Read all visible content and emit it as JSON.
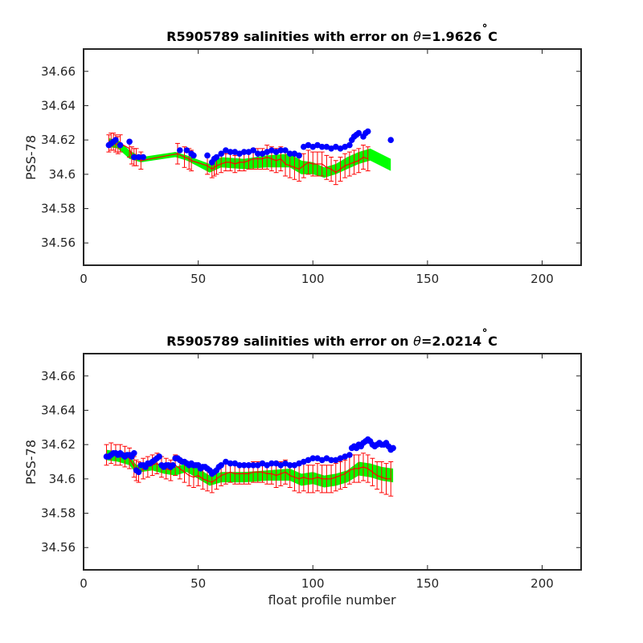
{
  "chart_data": [
    {
      "type": "scatter",
      "title": "R5905789 salinities with error on θ=1.9626˚C",
      "title_prefix": "R5905789 salinities with error on ",
      "title_theta": "θ",
      "title_suffix": "=1.9626",
      "title_deg": "˚",
      "title_unit": "C",
      "xlabel": "",
      "ylabel": "PSS-78",
      "xlim": [
        0,
        217
      ],
      "ylim": [
        34.547,
        34.673
      ],
      "xticks": [
        0,
        50,
        100,
        150,
        200
      ],
      "yticks": [
        34.56,
        34.58,
        34.6,
        34.62,
        34.64,
        34.66
      ],
      "ytick_labels": [
        "34.56",
        "34.58",
        "34.6",
        "34.62",
        "34.64",
        "34.66"
      ],
      "grid": false,
      "colors": {
        "calibrated": "#0000ff",
        "uncalibrated": "#ff0000",
        "climatology_band": "#00ff00"
      },
      "band": {
        "x": [
          11,
          15,
          20,
          25,
          40,
          45,
          55,
          60,
          70,
          80,
          90,
          95,
          100,
          105,
          110,
          115,
          120,
          125,
          134
        ],
        "upper": [
          34.621,
          34.62,
          34.614,
          34.61,
          34.613,
          34.611,
          34.606,
          34.61,
          34.609,
          34.611,
          34.612,
          34.608,
          34.607,
          34.604,
          34.606,
          34.61,
          34.613,
          34.615,
          34.609
        ],
        "lower": [
          34.616,
          34.615,
          34.609,
          34.607,
          34.61,
          34.608,
          34.601,
          34.604,
          34.603,
          34.604,
          34.604,
          34.6,
          34.6,
          34.598,
          34.6,
          34.603,
          34.606,
          34.608,
          34.602
        ]
      },
      "uncal": {
        "x": [
          11,
          12,
          13,
          14,
          15,
          16,
          20,
          21,
          22,
          23,
          25,
          41,
          44,
          46,
          47,
          54,
          56,
          57,
          58,
          60,
          62,
          64,
          66,
          68,
          70,
          72,
          74,
          76,
          78,
          80,
          82,
          84,
          86,
          88,
          90,
          92,
          94,
          96,
          98,
          100,
          102,
          104,
          106,
          108,
          110,
          112,
          114,
          116,
          118,
          120,
          122,
          124
        ],
        "y": [
          34.618,
          34.619,
          34.619,
          34.618,
          34.617,
          34.618,
          34.615,
          34.611,
          34.61,
          34.61,
          34.608,
          34.612,
          34.61,
          34.609,
          34.608,
          34.605,
          34.603,
          34.604,
          34.605,
          34.606,
          34.607,
          34.607,
          34.606,
          34.607,
          34.607,
          34.608,
          34.609,
          34.609,
          34.609,
          34.61,
          34.609,
          34.608,
          34.609,
          34.606,
          34.605,
          34.604,
          34.603,
          34.605,
          34.607,
          34.606,
          34.606,
          34.606,
          34.604,
          34.603,
          34.601,
          34.603,
          34.605,
          34.606,
          34.607,
          34.608,
          34.61,
          34.609
        ],
        "err": [
          0.005,
          0.005,
          0.005,
          0.005,
          0.005,
          0.005,
          0.005,
          0.005,
          0.005,
          0.005,
          0.005,
          0.006,
          0.006,
          0.006,
          0.006,
          0.005,
          0.005,
          0.005,
          0.005,
          0.005,
          0.005,
          0.005,
          0.005,
          0.005,
          0.005,
          0.005,
          0.006,
          0.006,
          0.006,
          0.007,
          0.007,
          0.007,
          0.007,
          0.007,
          0.007,
          0.007,
          0.007,
          0.007,
          0.007,
          0.007,
          0.007,
          0.007,
          0.007,
          0.007,
          0.007,
          0.007,
          0.007,
          0.007,
          0.007,
          0.007,
          0.007,
          0.007
        ]
      },
      "cal": {
        "x": [
          11,
          12,
          13,
          14,
          16,
          20,
          22,
          24,
          26,
          42,
          45,
          47,
          48,
          54,
          56,
          57,
          58,
          60,
          62,
          64,
          66,
          68,
          70,
          72,
          74,
          76,
          78,
          80,
          82,
          84,
          86,
          88,
          90,
          92,
          94,
          96,
          98,
          100,
          102,
          104,
          106,
          108,
          110,
          112,
          114,
          116,
          117,
          118,
          119,
          120,
          122,
          123,
          124,
          134
        ],
        "y": [
          34.617,
          34.618,
          34.619,
          34.62,
          34.617,
          34.619,
          34.61,
          34.61,
          34.61,
          34.614,
          34.614,
          34.612,
          34.611,
          34.611,
          34.607,
          34.609,
          34.61,
          34.612,
          34.614,
          34.613,
          34.613,
          34.612,
          34.613,
          34.613,
          34.614,
          34.612,
          34.612,
          34.613,
          34.614,
          34.613,
          34.614,
          34.614,
          34.612,
          34.612,
          34.611,
          34.616,
          34.617,
          34.616,
          34.617,
          34.616,
          34.616,
          34.615,
          34.616,
          34.615,
          34.616,
          34.617,
          34.62,
          34.622,
          34.623,
          34.624,
          34.622,
          34.624,
          34.625,
          34.62
        ]
      }
    },
    {
      "type": "scatter",
      "title": "R5905789 salinities with error on θ=2.0214˚C",
      "title_prefix": "R5905789 salinities with error on ",
      "title_theta": "θ",
      "title_suffix": "=2.0214",
      "title_deg": "˚",
      "title_unit": "C",
      "xlabel": "float profile number",
      "ylabel": "PSS-78",
      "xlim": [
        0,
        217
      ],
      "ylim": [
        34.547,
        34.673
      ],
      "xticks": [
        0,
        50,
        100,
        150,
        200
      ],
      "yticks": [
        34.56,
        34.58,
        34.6,
        34.62,
        34.64,
        34.66
      ],
      "ytick_labels": [
        "34.56",
        "34.58",
        "34.6",
        "34.62",
        "34.64",
        "34.66"
      ],
      "grid": false,
      "colors": {
        "calibrated": "#0000ff",
        "uncalibrated": "#ff0000",
        "climatology_band": "#00ff00"
      },
      "band": {
        "x": [
          10,
          15,
          20,
          23,
          25,
          30,
          35,
          40,
          45,
          50,
          55,
          60,
          70,
          80,
          90,
          95,
          100,
          105,
          110,
          115,
          120,
          125,
          130,
          135
        ],
        "upper": [
          34.617,
          34.616,
          34.614,
          34.608,
          34.609,
          34.61,
          34.608,
          34.607,
          34.609,
          34.606,
          34.602,
          34.604,
          34.604,
          34.605,
          34.606,
          34.603,
          34.604,
          34.602,
          34.603,
          34.605,
          34.61,
          34.609,
          34.607,
          34.606
        ],
        "lower": [
          34.611,
          34.61,
          34.608,
          34.603,
          34.604,
          34.605,
          34.603,
          34.602,
          34.604,
          34.6,
          34.596,
          34.598,
          34.598,
          34.599,
          34.599,
          34.596,
          34.597,
          34.595,
          34.596,
          34.598,
          34.602,
          34.601,
          34.599,
          34.598
        ]
      },
      "uncal": {
        "x": [
          10,
          12,
          14,
          16,
          18,
          20,
          22,
          23,
          24,
          26,
          28,
          30,
          32,
          34,
          36,
          38,
          40,
          42,
          44,
          46,
          48,
          50,
          52,
          54,
          56,
          58,
          60,
          62,
          64,
          66,
          68,
          70,
          72,
          74,
          76,
          78,
          80,
          82,
          84,
          86,
          88,
          90,
          92,
          94,
          96,
          98,
          100,
          102,
          104,
          106,
          108,
          110,
          112,
          114,
          116,
          118,
          120,
          122,
          124,
          126,
          128,
          130,
          132,
          134
        ],
        "y": [
          34.614,
          34.615,
          34.614,
          34.614,
          34.613,
          34.612,
          34.607,
          34.605,
          34.604,
          34.606,
          34.607,
          34.608,
          34.609,
          34.607,
          34.606,
          34.605,
          34.608,
          34.606,
          34.604,
          34.602,
          34.601,
          34.602,
          34.6,
          34.599,
          34.598,
          34.6,
          34.602,
          34.603,
          34.604,
          34.603,
          34.603,
          34.603,
          34.603,
          34.604,
          34.604,
          34.604,
          34.603,
          34.603,
          34.602,
          34.603,
          34.604,
          34.602,
          34.601,
          34.6,
          34.601,
          34.6,
          34.6,
          34.601,
          34.6,
          34.6,
          34.6,
          34.601,
          34.602,
          34.603,
          34.605,
          34.606,
          34.606,
          34.607,
          34.606,
          34.604,
          34.602,
          34.601,
          34.6,
          34.6
        ],
        "err": [
          0.006,
          0.006,
          0.006,
          0.006,
          0.006,
          0.006,
          0.006,
          0.006,
          0.006,
          0.006,
          0.006,
          0.006,
          0.006,
          0.006,
          0.006,
          0.006,
          0.006,
          0.006,
          0.006,
          0.006,
          0.006,
          0.006,
          0.006,
          0.006,
          0.006,
          0.006,
          0.006,
          0.006,
          0.006,
          0.006,
          0.006,
          0.006,
          0.006,
          0.006,
          0.006,
          0.006,
          0.006,
          0.006,
          0.007,
          0.007,
          0.007,
          0.007,
          0.008,
          0.008,
          0.008,
          0.008,
          0.008,
          0.008,
          0.008,
          0.008,
          0.008,
          0.008,
          0.008,
          0.008,
          0.008,
          0.008,
          0.008,
          0.008,
          0.008,
          0.008,
          0.008,
          0.009,
          0.009,
          0.01
        ]
      },
      "cal": {
        "x": [
          10,
          11,
          12,
          13,
          14,
          15,
          16,
          17,
          18,
          19,
          20,
          21,
          22,
          23,
          24,
          25,
          26,
          27,
          28,
          29,
          30,
          31,
          32,
          33,
          34,
          35,
          36,
          37,
          38,
          39,
          40,
          41,
          42,
          43,
          44,
          45,
          46,
          47,
          48,
          49,
          50,
          51,
          52,
          53,
          54,
          55,
          56,
          57,
          58,
          59,
          60,
          62,
          64,
          66,
          68,
          70,
          72,
          74,
          76,
          78,
          80,
          82,
          84,
          86,
          88,
          90,
          92,
          94,
          96,
          98,
          100,
          102,
          104,
          106,
          108,
          110,
          112,
          114,
          116,
          117,
          118,
          119,
          120,
          121,
          122,
          123,
          124,
          125,
          126,
          127,
          128,
          129,
          130,
          131,
          132,
          133,
          134,
          135
        ],
        "y": [
          34.613,
          34.613,
          34.614,
          34.615,
          34.615,
          34.614,
          34.615,
          34.614,
          34.613,
          34.614,
          34.614,
          34.613,
          34.615,
          34.605,
          34.604,
          34.608,
          34.608,
          34.607,
          34.609,
          34.609,
          34.61,
          34.611,
          34.612,
          34.613,
          34.608,
          34.607,
          34.608,
          34.608,
          34.607,
          34.608,
          34.612,
          34.612,
          34.611,
          34.61,
          34.61,
          34.609,
          34.608,
          34.609,
          34.608,
          34.608,
          34.608,
          34.606,
          34.607,
          34.607,
          34.606,
          34.605,
          34.603,
          34.604,
          34.605,
          34.607,
          34.608,
          34.61,
          34.609,
          34.609,
          34.608,
          34.608,
          34.608,
          34.608,
          34.608,
          34.609,
          34.608,
          34.609,
          34.609,
          34.608,
          34.609,
          34.608,
          34.608,
          34.609,
          34.61,
          34.611,
          34.612,
          34.612,
          34.611,
          34.612,
          34.611,
          34.611,
          34.612,
          34.613,
          34.614,
          34.618,
          34.619,
          34.618,
          34.62,
          34.619,
          34.621,
          34.622,
          34.623,
          34.622,
          34.62,
          34.619,
          34.62,
          34.621,
          34.62,
          34.62,
          34.621,
          34.619,
          34.617,
          34.618
        ]
      }
    }
  ]
}
